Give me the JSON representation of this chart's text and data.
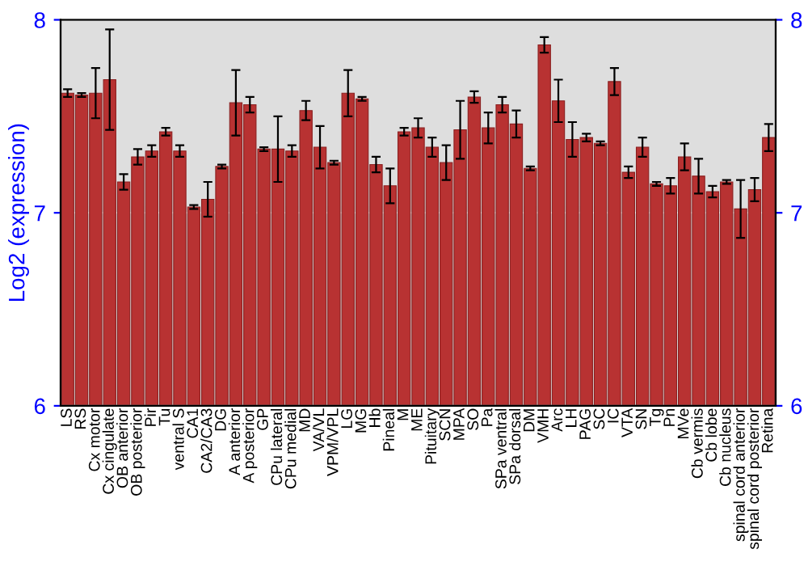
{
  "chart_data": {
    "type": "bar",
    "ylabel": "Log2 (expression)",
    "categories": [
      "LS",
      "RS",
      "Cx motor",
      "Cx cingulate",
      "OB anterior",
      "OB posterior",
      "Pir",
      "Tu",
      "ventral S",
      "CA1",
      "CA2/CA3",
      "DG",
      "A anterior",
      "A posterior",
      "GP",
      "CPu lateral",
      "CPu medial",
      "MD",
      "VA/VL",
      "VPM/VPL",
      "LG",
      "MG",
      "Hb",
      "Pineal",
      "M",
      "ME",
      "Pituitary",
      "SCN",
      "MPA",
      "SO",
      "Pa",
      "SPa ventral",
      "SPa dorsal",
      "DM",
      "VMH",
      "Arc",
      "LH",
      "PAG",
      "SC",
      "IC",
      "VTA",
      "SN",
      "Tg",
      "Pn",
      "MVe",
      "Cb vermis",
      "Cb lobe",
      "Cb nucleus",
      "spinal cord anterior",
      "spinal cord posterior",
      "Retina"
    ],
    "values": [
      7.62,
      7.61,
      7.62,
      7.69,
      7.16,
      7.29,
      7.32,
      7.42,
      7.32,
      7.03,
      7.07,
      7.24,
      7.57,
      7.56,
      7.33,
      7.33,
      7.32,
      7.53,
      7.34,
      7.26,
      7.62,
      7.59,
      7.25,
      7.14,
      7.42,
      7.44,
      7.34,
      7.26,
      7.43,
      7.6,
      7.44,
      7.56,
      7.46,
      7.23,
      7.87,
      7.58,
      7.38,
      7.39,
      7.36,
      7.68,
      7.21,
      7.34,
      7.15,
      7.14,
      7.29,
      7.19,
      7.11,
      7.16,
      7.02,
      7.12,
      7.39
    ],
    "errors": [
      0.02,
      0.01,
      0.13,
      0.26,
      0.04,
      0.04,
      0.03,
      0.02,
      0.03,
      0.01,
      0.09,
      0.01,
      0.17,
      0.04,
      0.01,
      0.17,
      0.03,
      0.05,
      0.11,
      0.01,
      0.12,
      0.01,
      0.04,
      0.09,
      0.02,
      0.05,
      0.05,
      0.09,
      0.15,
      0.03,
      0.08,
      0.04,
      0.07,
      0.01,
      0.04,
      0.11,
      0.09,
      0.02,
      0.01,
      0.07,
      0.03,
      0.05,
      0.01,
      0.04,
      0.07,
      0.09,
      0.03,
      0.01,
      0.15,
      0.06,
      0.07
    ],
    "color": "#b83232",
    "ylim": [
      6,
      8
    ],
    "yticks": [
      6,
      7,
      8
    ],
    "y2lim": [
      6,
      8
    ],
    "y2ticks": [
      6,
      7,
      8
    ],
    "grid": "y",
    "legend": false
  }
}
